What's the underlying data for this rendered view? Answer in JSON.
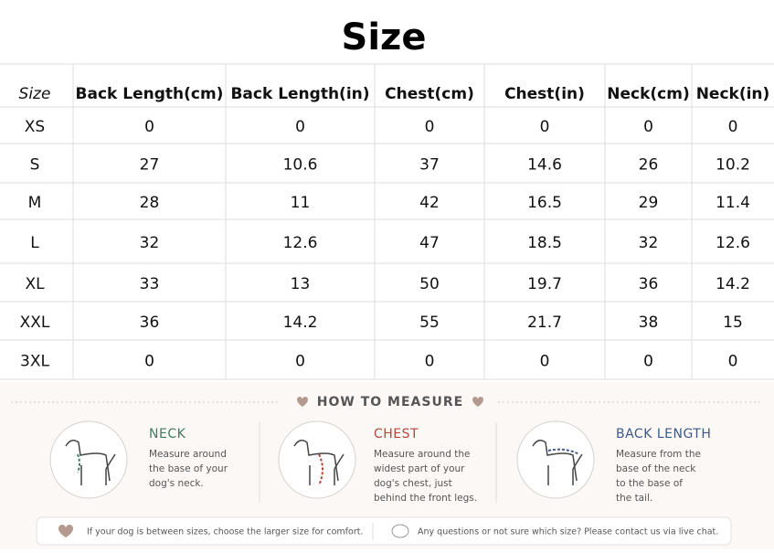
{
  "title": "Size",
  "table": {
    "header": [
      "Size",
      "Back Length(cm)",
      "Back Length(in)",
      "Chest(cm)",
      "Chest(in)",
      "Neck(cm)",
      "Neck(in)"
    ],
    "rows": [
      [
        "XS",
        "0",
        "0",
        "0",
        "0",
        "0",
        "0"
      ],
      [
        "S",
        "27",
        "10.6",
        "37",
        "14.6",
        "26",
        "10.2"
      ],
      [
        "M",
        "28",
        "11",
        "42",
        "16.5",
        "29",
        "11.4"
      ],
      [
        "L",
        "32",
        "12.6",
        "47",
        "18.5",
        "32",
        "12.6"
      ],
      [
        "XL",
        "33",
        "13",
        "50",
        "19.7",
        "36",
        "14.2"
      ],
      [
        "XXL",
        "36",
        "14.2",
        "55",
        "21.7",
        "38",
        "15"
      ],
      [
        "3XL",
        "0",
        "0",
        "0",
        "0",
        "0",
        "0"
      ]
    ]
  },
  "how_to_measure": {
    "title": "HOW TO MEASURE",
    "items": [
      {
        "heading": "NECK",
        "lines": [
          "Measure around",
          "the base of your",
          "dog's neck."
        ]
      },
      {
        "heading": "CHEST",
        "lines": [
          "Measure around the",
          "widest part of your",
          "dog's chest, just",
          "behind the front legs."
        ]
      },
      {
        "heading": "BACK LENGTH",
        "lines": [
          "Measure from the",
          "base of the neck",
          "to the base of",
          "the tail."
        ]
      }
    ]
  },
  "footer": {
    "notes": [
      "If your dog is between sizes, choose the larger size for comfort.",
      "Any questions or not sure which size? Please contact us via live chat."
    ]
  }
}
